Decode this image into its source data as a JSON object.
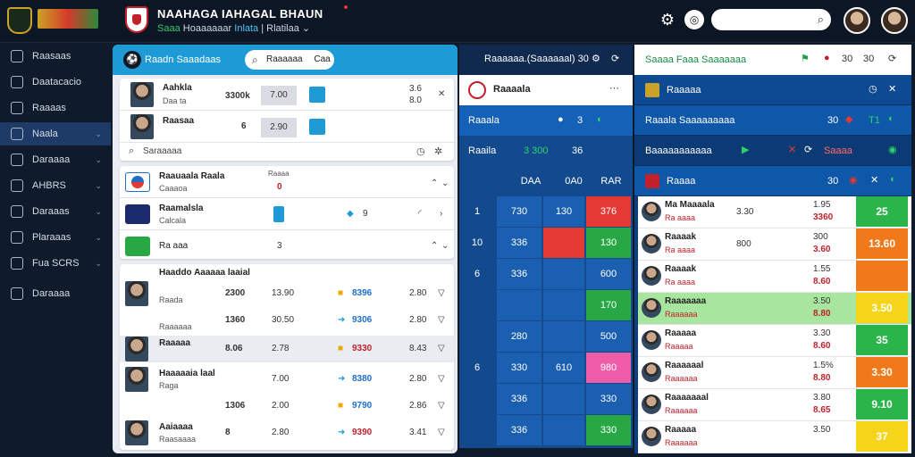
{
  "header": {
    "brand": "NAAHAGA IAHAGAL BHAUN",
    "sub_parts": [
      "Saaa",
      "Hoaaaaaar",
      "Inlata",
      "| Rlatilaa"
    ],
    "sub_caret": "⌄",
    "search_placeholder": ""
  },
  "sidebar": {
    "items": [
      {
        "label": "Raasaas",
        "icon": "flag-icon"
      },
      {
        "label": "Daatacacio",
        "icon": "monitor-icon"
      },
      {
        "label": "Raaaas",
        "icon": "folder-icon"
      },
      {
        "label": "Naala",
        "icon": "users-icon",
        "active": true
      },
      {
        "label": "Daraaaa",
        "icon": "globe-icon"
      },
      {
        "label": "AHBRS",
        "icon": "chart-icon"
      },
      {
        "label": "Daraaas",
        "icon": "settings-icon"
      },
      {
        "label": "Plaraaas",
        "icon": "plane-icon"
      },
      {
        "label": "Fua SCRS",
        "icon": "calendar-icon"
      },
      {
        "label": "Daraaaa",
        "icon": "trophy-icon"
      }
    ]
  },
  "main": {
    "title": "Raadn Saaadaas",
    "pill": "Raaaaaa",
    "pill_tag": "Caa",
    "players": [
      {
        "name": "Aahkla",
        "sub": "Daa ta",
        "val": "3300k",
        "g1": "7.00",
        "a": "3.6",
        "b": "8.0"
      },
      {
        "name": "Raasaa",
        "sub": "",
        "val": "6",
        "g1": "2.90",
        "a": "",
        "b": ""
      }
    ],
    "search_label": "Saraaaaa",
    "teams": [
      {
        "name": "Raauaala Raala",
        "sub": "Caaaoa",
        "val": "0",
        "top": "Raaaa"
      },
      {
        "name": "Raamalsla",
        "sub": "Calcala",
        "val": "9"
      },
      {
        "name": "Ra aaa",
        "sub": "",
        "val": "3"
      }
    ],
    "lineup_title": "Haaddo Aaaaaa laaial",
    "lineup": [
      {
        "sub": "Raada",
        "v1": "2300",
        "v2": "13.90",
        "v3": "8396",
        "v4": "2.80"
      },
      {
        "sub": "Raaaaaa",
        "v1": "1360",
        "v2": "30.50",
        "v3": "9306",
        "v4": "2.80"
      },
      {
        "name": "Raaaaa",
        "sub": "",
        "v1": "8.06",
        "v2": "2.78",
        "v3": "9330",
        "v4": "8.43"
      },
      {
        "name": "Haaaaaia laal",
        "sub": "Raga",
        "v1": "",
        "v2": "7.00",
        "v3": "8380",
        "v4": "2.80"
      },
      {
        "sub": "",
        "v1": "1306",
        "v2": "2.00",
        "v3": "9790",
        "v4": "2.86"
      },
      {
        "name": "Aaiaaaa",
        "sub": "Raasaaaa",
        "v1": "8",
        "v2": "2.80",
        "v3": "9390",
        "v4": "3.41"
      }
    ]
  },
  "center": {
    "header": "Raaaaaa.(Saaaaaal) 30",
    "card_title": "Raaaala",
    "rows": [
      {
        "label": "Raaala",
        "v": "3"
      },
      {
        "label": "Raaila",
        "v": "3 300",
        "v2": "36"
      }
    ],
    "headers": [
      "DAA",
      "0A0",
      "RAR"
    ],
    "table": [
      [
        "1",
        "730",
        "130",
        "376"
      ],
      [
        "10",
        "336",
        "",
        "130"
      ],
      [
        "6",
        "336",
        "",
        "600"
      ],
      [
        "",
        "",
        "",
        "170"
      ],
      [
        "",
        "280",
        "",
        "500"
      ],
      [
        "6",
        "330",
        "610",
        "980"
      ],
      [
        "",
        "336",
        "",
        "330"
      ],
      [
        "",
        "336",
        "",
        "330"
      ]
    ],
    "colors": [
      "#1a5fb0",
      "#e53935",
      "#28a745",
      "#ef5da8"
    ]
  },
  "right": {
    "header": "Saaaa Faaa Saaaaaaa",
    "icons": [
      "flag-icon",
      "alert-icon",
      "30",
      "30"
    ],
    "rows": [
      {
        "label": "Raaaaa",
        "v": ""
      },
      {
        "label": "Raaala Saaaaaaaaa",
        "v": "30",
        "v2": "T1"
      },
      {
        "label": "Baaaaaaaaaaa",
        "v": "Saaaa"
      },
      {
        "label": "Raaaa",
        "v": "30"
      }
    ],
    "players": [
      {
        "name": "Ma Maaaala",
        "sub": "Ra aaaa",
        "mid": "3.30",
        "stat": "1.95",
        "stat2": "3360",
        "val": "25",
        "color": "#2bb44a"
      },
      {
        "name": "Raaaak",
        "sub": "Ra aaaa",
        "mid": "800",
        "stat": "300",
        "stat2": "3.60",
        "val": "13.60",
        "color": "#f07a1a"
      },
      {
        "name": "Raaaak",
        "sub": "Ra aaaa",
        "mid": "",
        "stat": "1.55",
        "stat2": "8.60",
        "val": "",
        "color": "#f07a1a"
      },
      {
        "name": "Raaaaaaa",
        "sub": "Raaaaaa",
        "mid": "",
        "stat": "3.50",
        "stat2": "8.80",
        "val": "3.50",
        "color": "#f5d41a",
        "hl": true
      },
      {
        "name": "Raaaaa",
        "sub": "Raaaaa",
        "mid": "",
        "stat": "3.30",
        "stat2": "8.60",
        "val": "35",
        "color": "#2bb44a"
      },
      {
        "name": "Raaaaaal",
        "sub": "Raaaaaa",
        "mid": "",
        "stat": "1.5%",
        "stat2": "8.80",
        "val": "3.30",
        "color": "#f07a1a"
      },
      {
        "name": "Raaaaaaal",
        "sub": "Raaaaaa",
        "mid": "",
        "stat": "3.80",
        "stat2": "8.65",
        "val": "9.10",
        "color": "#2bb44a"
      },
      {
        "name": "Raaaaa",
        "sub": "Raaaaaa",
        "mid": "",
        "stat": "3.50",
        "stat2": "",
        "val": "37",
        "color": "#f5d41a"
      }
    ]
  }
}
